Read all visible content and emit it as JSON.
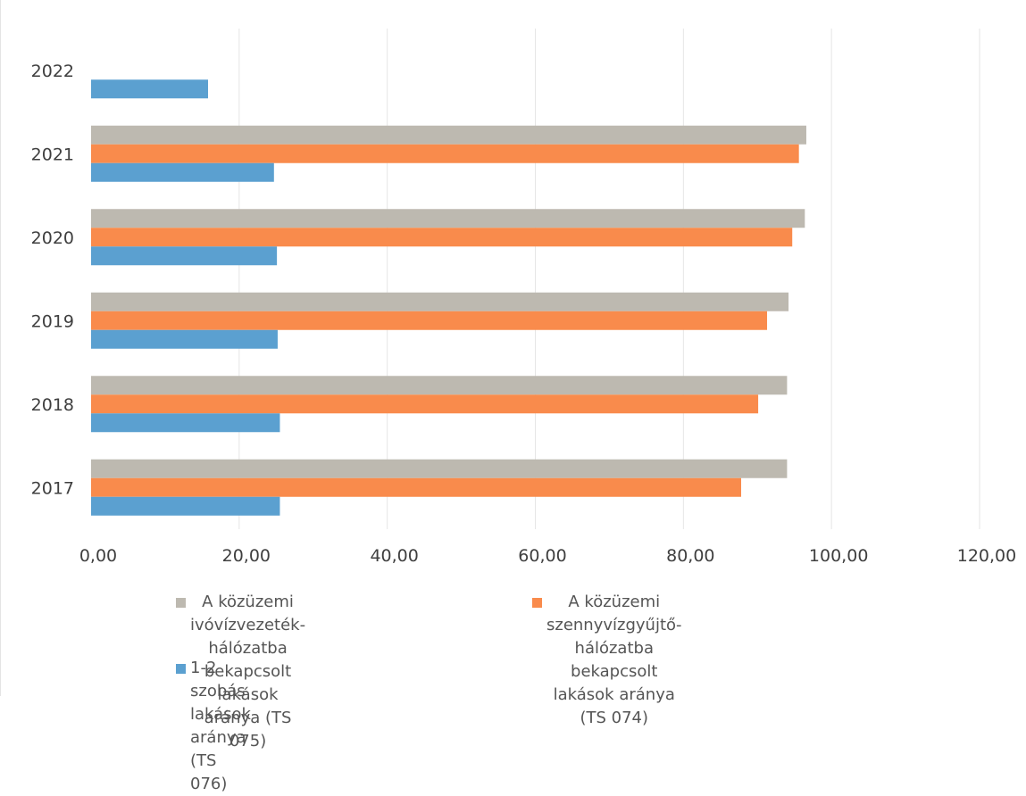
{
  "chart_data": {
    "type": "bar",
    "orientation": "horizontal",
    "categories": [
      "2022",
      "2021",
      "2020",
      "2019",
      "2018",
      "2017"
    ],
    "series": [
      {
        "name": "A közüzemi ivóvízvezeték-hálózatba\nbekapcsolt lakások aránya (TS 075)",
        "color": "#bdb9b0",
        "values": [
          null,
          96.6,
          96.4,
          94.2,
          94.0,
          94.0
        ]
      },
      {
        "name": "A közüzemi szennyvízgyűjtő-hálózatba\nbekapcsolt lakások aránya (TS 074)",
        "color": "#f98b4c",
        "values": [
          null,
          95.6,
          94.7,
          91.3,
          90.1,
          87.8
        ]
      },
      {
        "name": "1-2 szobás lakások aránya\n(TS 076)",
        "color": "#5ba0d0",
        "values": [
          15.8,
          24.7,
          25.1,
          25.2,
          25.5,
          25.5
        ]
      }
    ],
    "xlim": [
      0,
      120
    ],
    "xticks": [
      "0,00",
      "20,00",
      "40,00",
      "60,00",
      "80,00",
      "100,00",
      "120,00"
    ],
    "xtick_values": [
      0,
      20,
      40,
      60,
      80,
      100,
      120
    ],
    "grid": "vertical",
    "legend": "bottom"
  }
}
